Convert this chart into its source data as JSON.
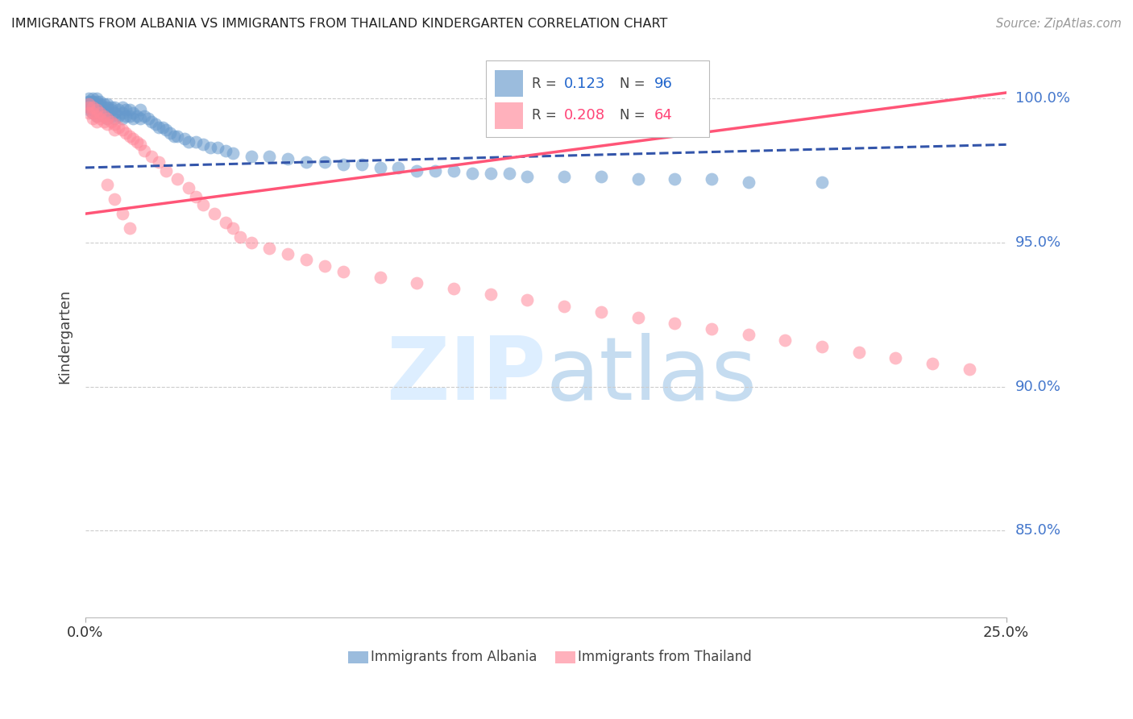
{
  "title": "IMMIGRANTS FROM ALBANIA VS IMMIGRANTS FROM THAILAND KINDERGARTEN CORRELATION CHART",
  "source": "Source: ZipAtlas.com",
  "ylabel": "Kindergarten",
  "right_ytick_labels": [
    "100.0%",
    "95.0%",
    "90.0%",
    "85.0%"
  ],
  "right_ytick_vals": [
    1.0,
    0.95,
    0.9,
    0.85
  ],
  "xlim": [
    0.0,
    0.25
  ],
  "ylim": [
    0.82,
    1.015
  ],
  "albania_color": "#6699CC",
  "thailand_color": "#FF8899",
  "albania_line_color": "#3355AA",
  "thailand_line_color": "#FF5577",
  "albania_R": "0.123",
  "albania_N": "96",
  "thailand_R": "0.208",
  "thailand_N": "64",
  "grid_color": "#CCCCCC",
  "grid_vals": [
    0.85,
    0.9,
    0.95,
    1.0
  ],
  "albania_trend_x": [
    0.0,
    0.25
  ],
  "albania_trend_y": [
    0.976,
    0.984
  ],
  "thailand_trend_x": [
    0.0,
    0.25
  ],
  "thailand_trend_y": [
    0.96,
    1.002
  ],
  "albania_scatter_x": [
    0.001,
    0.001,
    0.001,
    0.001,
    0.001,
    0.001,
    0.001,
    0.001,
    0.002,
    0.002,
    0.002,
    0.002,
    0.002,
    0.002,
    0.002,
    0.003,
    0.003,
    0.003,
    0.003,
    0.003,
    0.003,
    0.003,
    0.004,
    0.004,
    0.004,
    0.004,
    0.004,
    0.005,
    0.005,
    0.005,
    0.005,
    0.006,
    0.006,
    0.006,
    0.006,
    0.007,
    0.007,
    0.007,
    0.008,
    0.008,
    0.008,
    0.009,
    0.009,
    0.01,
    0.01,
    0.01,
    0.011,
    0.011,
    0.012,
    0.012,
    0.013,
    0.013,
    0.014,
    0.015,
    0.015,
    0.016,
    0.017,
    0.018,
    0.019,
    0.02,
    0.021,
    0.022,
    0.023,
    0.024,
    0.025,
    0.027,
    0.028,
    0.03,
    0.032,
    0.034,
    0.036,
    0.038,
    0.04,
    0.045,
    0.05,
    0.055,
    0.06,
    0.065,
    0.07,
    0.075,
    0.08,
    0.085,
    0.09,
    0.095,
    0.1,
    0.105,
    0.11,
    0.115,
    0.12,
    0.13,
    0.14,
    0.15,
    0.16,
    0.17,
    0.18,
    0.2
  ],
  "albania_scatter_y": [
    1.0,
    0.999,
    0.999,
    0.998,
    0.998,
    0.997,
    0.997,
    0.996,
    1.0,
    0.999,
    0.999,
    0.998,
    0.997,
    0.996,
    0.995,
    1.0,
    0.999,
    0.998,
    0.997,
    0.996,
    0.995,
    0.994,
    0.999,
    0.998,
    0.997,
    0.996,
    0.995,
    0.998,
    0.997,
    0.996,
    0.994,
    0.998,
    0.997,
    0.995,
    0.993,
    0.997,
    0.996,
    0.994,
    0.997,
    0.995,
    0.993,
    0.996,
    0.994,
    0.997,
    0.995,
    0.993,
    0.996,
    0.994,
    0.996,
    0.994,
    0.995,
    0.993,
    0.994,
    0.996,
    0.993,
    0.994,
    0.993,
    0.992,
    0.991,
    0.99,
    0.99,
    0.989,
    0.988,
    0.987,
    0.987,
    0.986,
    0.985,
    0.985,
    0.984,
    0.983,
    0.983,
    0.982,
    0.981,
    0.98,
    0.98,
    0.979,
    0.978,
    0.978,
    0.977,
    0.977,
    0.976,
    0.976,
    0.975,
    0.975,
    0.975,
    0.974,
    0.974,
    0.974,
    0.973,
    0.973,
    0.973,
    0.972,
    0.972,
    0.972,
    0.971,
    0.971
  ],
  "thailand_scatter_x": [
    0.001,
    0.001,
    0.001,
    0.002,
    0.002,
    0.002,
    0.003,
    0.003,
    0.003,
    0.004,
    0.004,
    0.005,
    0.005,
    0.006,
    0.006,
    0.007,
    0.008,
    0.008,
    0.009,
    0.01,
    0.011,
    0.012,
    0.013,
    0.014,
    0.015,
    0.016,
    0.018,
    0.02,
    0.022,
    0.025,
    0.028,
    0.03,
    0.032,
    0.035,
    0.038,
    0.04,
    0.042,
    0.045,
    0.05,
    0.055,
    0.06,
    0.065,
    0.07,
    0.08,
    0.09,
    0.1,
    0.11,
    0.12,
    0.13,
    0.14,
    0.15,
    0.16,
    0.17,
    0.18,
    0.19,
    0.2,
    0.21,
    0.22,
    0.23,
    0.24,
    0.006,
    0.008,
    0.01,
    0.012
  ],
  "thailand_scatter_y": [
    0.998,
    0.997,
    0.995,
    0.997,
    0.995,
    0.993,
    0.996,
    0.994,
    0.992,
    0.995,
    0.993,
    0.994,
    0.992,
    0.993,
    0.991,
    0.992,
    0.991,
    0.989,
    0.99,
    0.989,
    0.988,
    0.987,
    0.986,
    0.985,
    0.984,
    0.982,
    0.98,
    0.978,
    0.975,
    0.972,
    0.969,
    0.966,
    0.963,
    0.96,
    0.957,
    0.955,
    0.952,
    0.95,
    0.948,
    0.946,
    0.944,
    0.942,
    0.94,
    0.938,
    0.936,
    0.934,
    0.932,
    0.93,
    0.928,
    0.926,
    0.924,
    0.922,
    0.92,
    0.918,
    0.916,
    0.914,
    0.912,
    0.91,
    0.908,
    0.906,
    0.97,
    0.965,
    0.96,
    0.955
  ]
}
